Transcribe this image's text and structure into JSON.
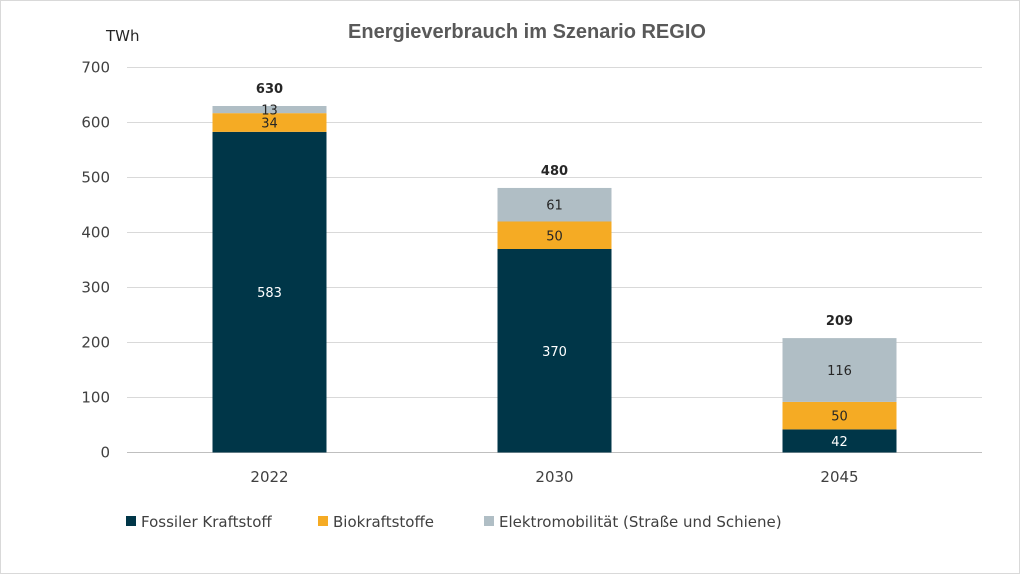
{
  "chart_data": {
    "type": "bar",
    "stacked": true,
    "title": "Energieverbrauch im Szenario REGIO",
    "ylabel": "TWh",
    "xlabel": "",
    "ylim": [
      0,
      700
    ],
    "yticks": [
      0,
      100,
      200,
      300,
      400,
      500,
      600,
      700
    ],
    "grid": true,
    "legend_position": "bottom",
    "categories": [
      "2022",
      "2030",
      "2045"
    ],
    "series": [
      {
        "name": "Fossiler Kraftstoff",
        "values": [
          583,
          370,
          42
        ],
        "color": "#003648",
        "label_color": "#ffffff"
      },
      {
        "name": "Biokraftstoffe",
        "values": [
          34,
          50,
          50
        ],
        "color": "#f5ab24",
        "label_color": "#262626"
      },
      {
        "name": "Elektromobilität (Straße und Schiene)",
        "values": [
          13,
          61,
          116
        ],
        "color": "#b0bec5",
        "label_color": "#262626"
      }
    ],
    "totals": [
      630,
      480,
      209
    ],
    "colors": {
      "grid": "#d9d9d9",
      "axis": "#bfbfbf"
    }
  }
}
